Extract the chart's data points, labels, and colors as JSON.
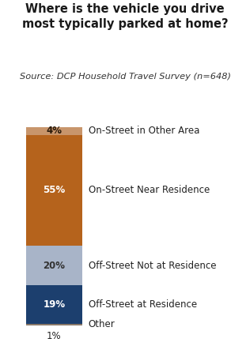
{
  "title": "Where is the vehicle you drive\nmost typically parked at home?",
  "subtitle": "Source: DCP Household Travel Survey (n=648)",
  "categories": [
    "On-Street in Other Area",
    "On-Street Near Residence",
    "Off-Street Not at Residence",
    "Off-Street at Residence",
    "Other"
  ],
  "values": [
    4,
    55,
    20,
    19,
    1
  ],
  "labels": [
    "4%",
    "55%",
    "20%",
    "19%",
    "1%"
  ],
  "colors": [
    "#c8956b",
    "#b5631c",
    "#a8b4c8",
    "#1c3f6e",
    "#8b7a6a"
  ],
  "bar_width": 0.38,
  "figsize": [
    3.16,
    4.38
  ],
  "dpi": 100,
  "title_fontsize": 10.5,
  "subtitle_fontsize": 8.2,
  "label_fontsize": 8.5,
  "annotation_fontsize": 8.5,
  "text_colors": [
    "#2a1a0a",
    "white",
    "#333333",
    "white",
    "#333333"
  ]
}
